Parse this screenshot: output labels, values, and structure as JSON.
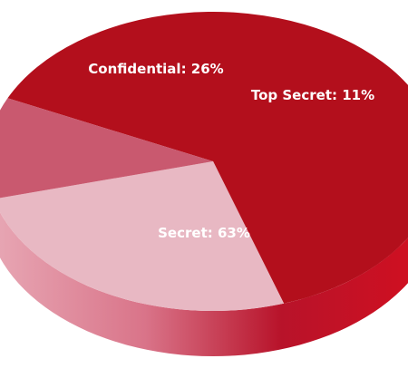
{
  "chart_data": {
    "type": "pie",
    "style": "3d",
    "categories": [
      "Secret",
      "Confidential",
      "Top Secret"
    ],
    "values": [
      63,
      26,
      11
    ],
    "labels": [
      "Secret: 63%",
      "Confidential: 26%",
      "Top Secret: 11%"
    ],
    "colors": [
      "#b30f1c",
      "#e8b8c3",
      "#c9596f"
    ],
    "title": "",
    "legend": "none"
  }
}
